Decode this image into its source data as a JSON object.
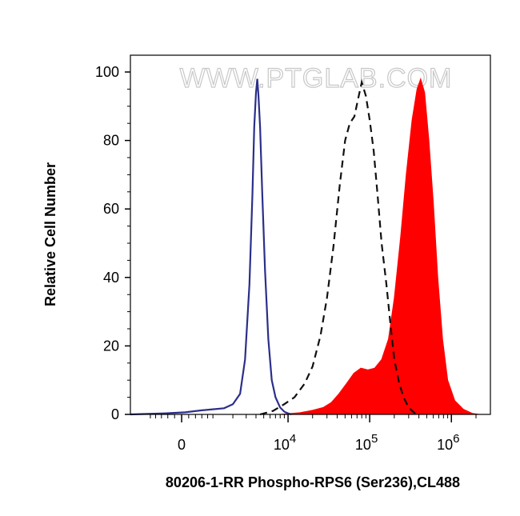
{
  "chart_data": {
    "type": "area",
    "xlabel": "80206-1-RR Phospho-RPS6 (Ser236),CL488",
    "ylabel": "Relative Cell Number",
    "watermark": "WWW.PTGLAB.COM",
    "x_scale": "biexponential",
    "xlim": [
      -2000,
      3000000
    ],
    "ylim": [
      0,
      100
    ],
    "x_ticks": [
      {
        "value": 0,
        "base": "0",
        "exp": ""
      },
      {
        "value": 10000,
        "base": "10",
        "exp": "4"
      },
      {
        "value": 100000,
        "base": "10",
        "exp": "5"
      },
      {
        "value": 1000000,
        "base": "10",
        "exp": "6"
      }
    ],
    "y_ticks": [
      0,
      20,
      40,
      60,
      80,
      100
    ],
    "grid": false,
    "legend": "none",
    "series": [
      {
        "style": "blue-line",
        "color": "#2b2f8a",
        "points": [
          [
            -2000,
            0
          ],
          [
            -500,
            0.3
          ],
          [
            100,
            0.6
          ],
          [
            600,
            1.2
          ],
          [
            1000,
            1.5
          ],
          [
            1500,
            1.8
          ],
          [
            2000,
            3
          ],
          [
            2500,
            6
          ],
          [
            2900,
            16
          ],
          [
            3300,
            38
          ],
          [
            3600,
            64
          ],
          [
            3800,
            84
          ],
          [
            4000,
            94
          ],
          [
            4150,
            98
          ],
          [
            4300,
            93
          ],
          [
            4500,
            84
          ],
          [
            4800,
            64
          ],
          [
            5200,
            42
          ],
          [
            5700,
            22
          ],
          [
            6300,
            10
          ],
          [
            7000,
            5
          ],
          [
            8000,
            2
          ],
          [
            9000,
            0.8
          ],
          [
            10000,
            0.3
          ],
          [
            11000,
            0
          ]
        ]
      },
      {
        "style": "black-dashed",
        "color": "#111111",
        "points": [
          [
            4500,
            0
          ],
          [
            6500,
            1
          ],
          [
            9000,
            3
          ],
          [
            12000,
            5
          ],
          [
            16000,
            9
          ],
          [
            20000,
            14
          ],
          [
            25000,
            23
          ],
          [
            30000,
            34
          ],
          [
            36000,
            49
          ],
          [
            43000,
            67
          ],
          [
            50000,
            80
          ],
          [
            57000,
            85
          ],
          [
            65000,
            87
          ],
          [
            72000,
            92
          ],
          [
            80000,
            97
          ],
          [
            90000,
            93
          ],
          [
            100000,
            86
          ],
          [
            112000,
            77
          ],
          [
            125000,
            64
          ],
          [
            140000,
            50
          ],
          [
            160000,
            38
          ],
          [
            180000,
            26
          ],
          [
            200000,
            16
          ],
          [
            230000,
            9
          ],
          [
            260000,
            5
          ],
          [
            300000,
            2
          ],
          [
            350000,
            0.5
          ],
          [
            400000,
            0
          ]
        ]
      },
      {
        "style": "red-fill",
        "color": "#ff0000",
        "points": [
          [
            8000,
            0
          ],
          [
            14000,
            0.5
          ],
          [
            20000,
            1.2
          ],
          [
            27000,
            2
          ],
          [
            34000,
            3.5
          ],
          [
            42000,
            6
          ],
          [
            52000,
            9
          ],
          [
            64000,
            12
          ],
          [
            78000,
            13.5
          ],
          [
            95000,
            13
          ],
          [
            115000,
            13.5
          ],
          [
            140000,
            16
          ],
          [
            170000,
            22
          ],
          [
            200000,
            34
          ],
          [
            240000,
            52
          ],
          [
            280000,
            70
          ],
          [
            330000,
            86
          ],
          [
            380000,
            95
          ],
          [
            420000,
            98
          ],
          [
            470000,
            94
          ],
          [
            530000,
            80
          ],
          [
            600000,
            62
          ],
          [
            680000,
            40
          ],
          [
            780000,
            22
          ],
          [
            900000,
            10
          ],
          [
            1100000,
            4
          ],
          [
            1400000,
            1.5
          ],
          [
            1800000,
            0.3
          ],
          [
            2200000,
            0
          ]
        ]
      }
    ]
  }
}
